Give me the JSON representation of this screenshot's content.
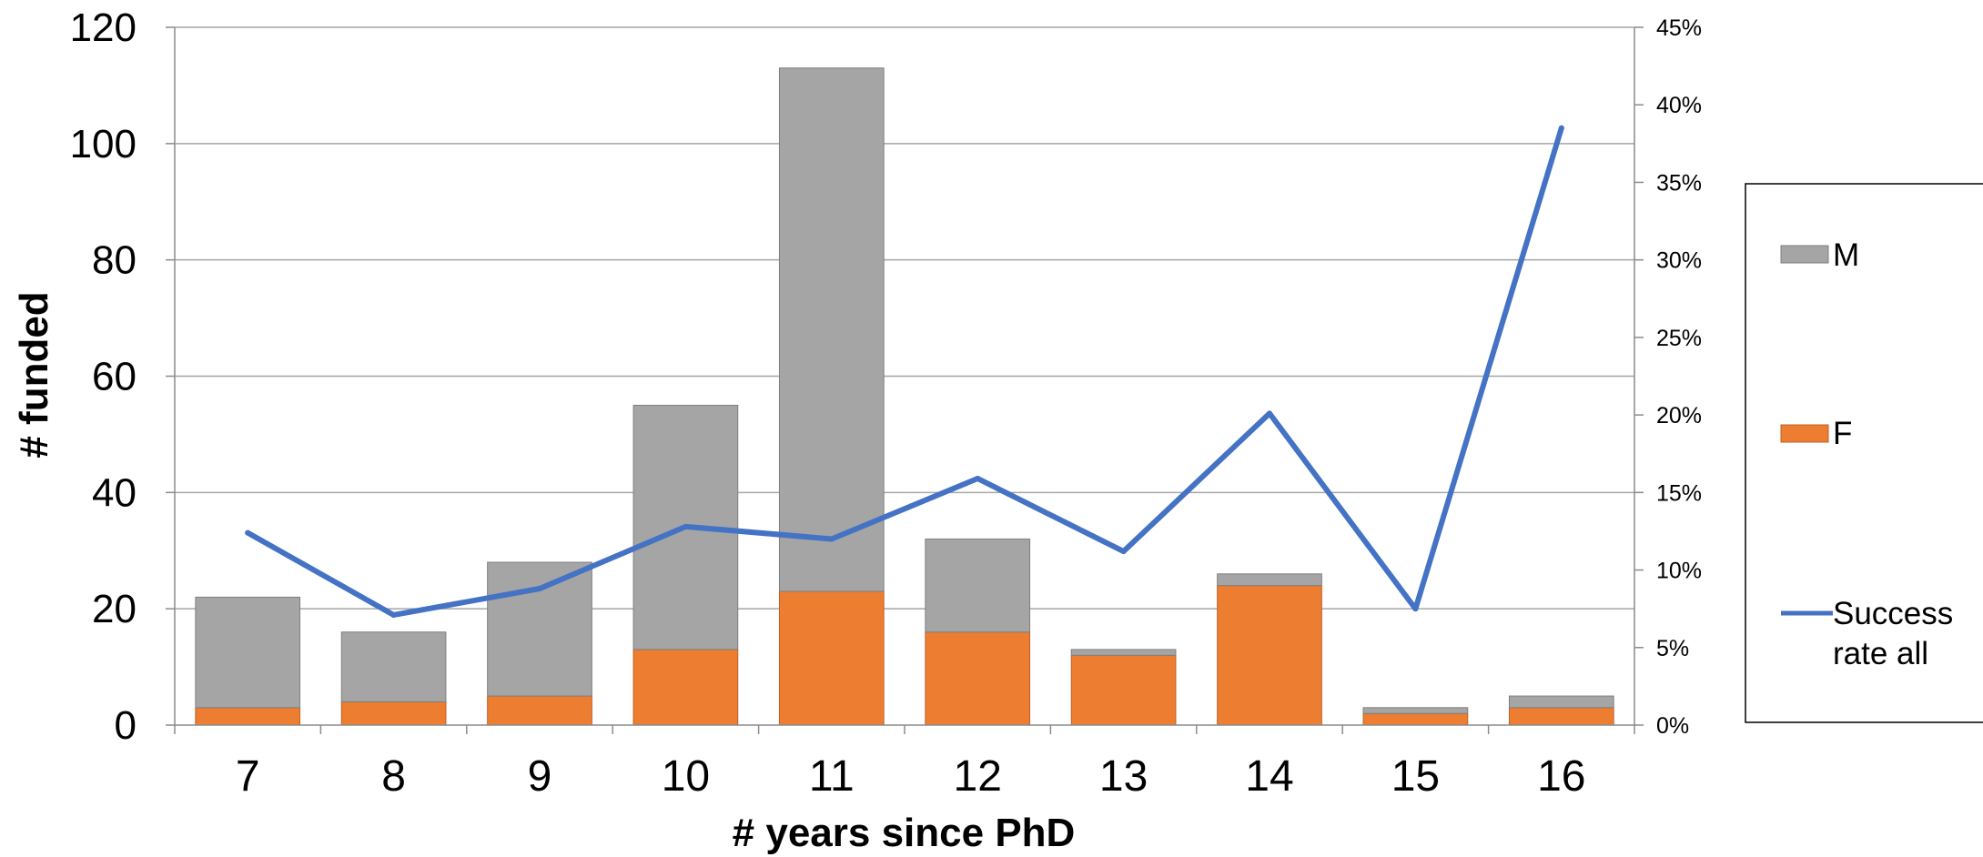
{
  "chart_data": {
    "type": "bar",
    "stacked": true,
    "categories": [
      "7",
      "8",
      "9",
      "10",
      "11",
      "12",
      "13",
      "14",
      "15",
      "16"
    ],
    "series": [
      {
        "name": "F",
        "kind": "bar",
        "axis": "left",
        "color": "#ED7D31",
        "values": [
          3,
          4,
          5,
          13,
          23,
          16,
          12,
          24,
          2,
          3
        ]
      },
      {
        "name": "M",
        "kind": "bar",
        "axis": "left",
        "color": "#A5A5A5",
        "values": [
          19,
          12,
          23,
          42,
          90,
          16,
          1,
          2,
          1,
          2
        ]
      },
      {
        "name": "Success rate all",
        "kind": "line",
        "axis": "right",
        "color": "#4472C4",
        "values": [
          0.124,
          0.071,
          0.088,
          0.128,
          0.12,
          0.159,
          0.112,
          0.201,
          0.075,
          0.385
        ]
      }
    ],
    "xlabel": "# years since PhD",
    "ylabel": "# funded",
    "ylim": [
      0,
      120
    ],
    "y_ticks": [
      "0",
      "20",
      "40",
      "60",
      "80",
      "100",
      "120"
    ],
    "y2lim": [
      0,
      0.45
    ],
    "y2_ticks": [
      "0%",
      "5%",
      "10%",
      "15%",
      "20%",
      "25%",
      "30%",
      "35%",
      "40%",
      "45%"
    ],
    "grid": true,
    "legend": {
      "position": "right",
      "entries": [
        {
          "label": "M",
          "kind": "bar",
          "color": "#A5A5A5"
        },
        {
          "label": "F",
          "kind": "bar",
          "color": "#ED7D31"
        },
        {
          "label_lines": [
            "Success",
            "rate all"
          ],
          "kind": "line",
          "color": "#4472C4"
        }
      ]
    }
  }
}
